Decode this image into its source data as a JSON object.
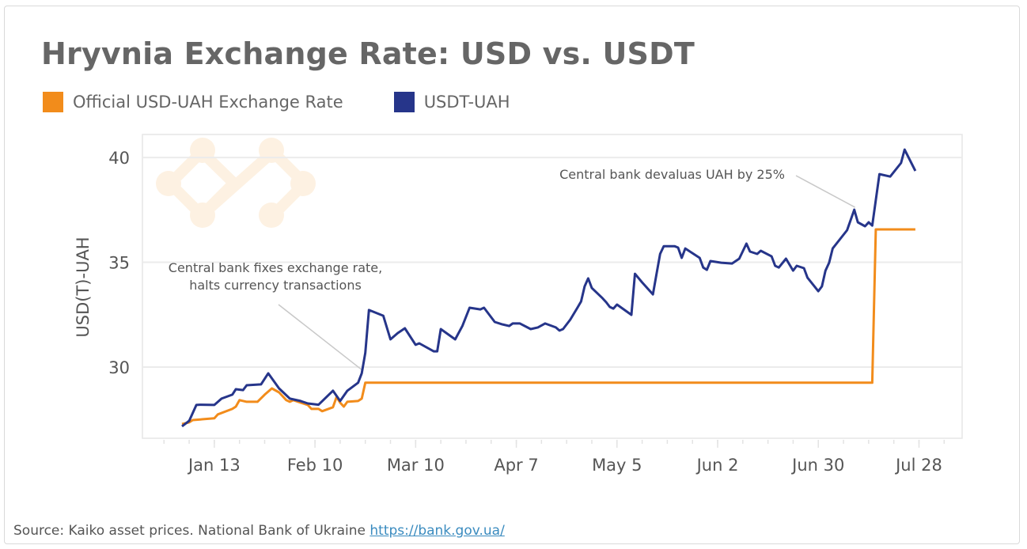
{
  "chart_data": {
    "type": "line",
    "title": "Hryvnia Exchange Rate: USD vs. USDT",
    "xlabel": "",
    "ylabel": "USD(T)-UAH",
    "xlim": [
      "2021-12-24",
      "2022-08-09"
    ],
    "ylim": [
      26.6,
      41.1
    ],
    "x_ticks": [
      {
        "date": "2022-01-13",
        "label": "Jan 13"
      },
      {
        "date": "2022-02-10",
        "label": "Feb 10"
      },
      {
        "date": "2022-03-10",
        "label": "Mar 10"
      },
      {
        "date": "2022-04-07",
        "label": "Apr 7"
      },
      {
        "date": "2022-05-05",
        "label": "May 5"
      },
      {
        "date": "2022-06-02",
        "label": "Jun 2"
      },
      {
        "date": "2022-06-30",
        "label": "Jun 30"
      },
      {
        "date": "2022-07-28",
        "label": "Jul 28"
      }
    ],
    "y_ticks": [
      {
        "value": 30,
        "label": "30"
      },
      {
        "value": 35,
        "label": "35"
      },
      {
        "value": 40,
        "label": "40"
      }
    ],
    "grid": true,
    "legend": "top-left",
    "series": [
      {
        "name": "Official USD-UAH Exchange Rate",
        "color": "#f28c1b",
        "points": [
          [
            "2022-01-04",
            27.28
          ],
          [
            "2022-01-06",
            27.36
          ],
          [
            "2022-01-07",
            27.47
          ],
          [
            "2022-01-13",
            27.55
          ],
          [
            "2022-01-14",
            27.74
          ],
          [
            "2022-01-18",
            28.0
          ],
          [
            "2022-01-19",
            28.11
          ],
          [
            "2022-01-20",
            28.42
          ],
          [
            "2022-01-22",
            28.34
          ],
          [
            "2022-01-25",
            28.34
          ],
          [
            "2022-01-27",
            28.68
          ],
          [
            "2022-01-29",
            28.98
          ],
          [
            "2022-01-31",
            28.79
          ],
          [
            "2022-02-02",
            28.42
          ],
          [
            "2022-02-03",
            28.34
          ],
          [
            "2022-02-04",
            28.42
          ],
          [
            "2022-02-06",
            28.3
          ],
          [
            "2022-02-08",
            28.19
          ],
          [
            "2022-02-09",
            28.0
          ],
          [
            "2022-02-11",
            28.0
          ],
          [
            "2022-02-12",
            27.89
          ],
          [
            "2022-02-15",
            28.08
          ],
          [
            "2022-02-16",
            28.57
          ],
          [
            "2022-02-17",
            28.3
          ],
          [
            "2022-02-18",
            28.11
          ],
          [
            "2022-02-19",
            28.34
          ],
          [
            "2022-02-22",
            28.38
          ],
          [
            "2022-02-23",
            28.49
          ],
          [
            "2022-02-24",
            29.25
          ],
          [
            "2022-07-15",
            29.25
          ],
          [
            "2022-07-16",
            36.57
          ],
          [
            "2022-07-27",
            36.57
          ]
        ]
      },
      {
        "name": "USDT-UAH",
        "color": "#26358a",
        "points": [
          [
            "2022-01-04",
            27.17
          ],
          [
            "2022-01-06",
            27.43
          ],
          [
            "2022-01-08",
            28.19
          ],
          [
            "2022-01-09",
            28.2
          ],
          [
            "2022-01-13",
            28.19
          ],
          [
            "2022-01-15",
            28.49
          ],
          [
            "2022-01-18",
            28.68
          ],
          [
            "2022-01-19",
            28.94
          ],
          [
            "2022-01-21",
            28.9
          ],
          [
            "2022-01-22",
            29.13
          ],
          [
            "2022-01-26",
            29.17
          ],
          [
            "2022-01-28",
            29.7
          ],
          [
            "2022-01-31",
            28.98
          ],
          [
            "2022-02-03",
            28.49
          ],
          [
            "2022-02-06",
            28.38
          ],
          [
            "2022-02-08",
            28.26
          ],
          [
            "2022-02-11",
            28.2
          ],
          [
            "2022-02-15",
            28.87
          ],
          [
            "2022-02-17",
            28.38
          ],
          [
            "2022-02-19",
            28.87
          ],
          [
            "2022-02-22",
            29.25
          ],
          [
            "2022-02-23",
            29.7
          ],
          [
            "2022-02-24",
            30.68
          ],
          [
            "2022-02-25",
            32.72
          ],
          [
            "2022-03-01",
            32.45
          ],
          [
            "2022-03-03",
            31.32
          ],
          [
            "2022-03-05",
            31.62
          ],
          [
            "2022-03-07",
            31.85
          ],
          [
            "2022-03-10",
            31.06
          ],
          [
            "2022-03-11",
            31.13
          ],
          [
            "2022-03-15",
            30.75
          ],
          [
            "2022-03-16",
            30.75
          ],
          [
            "2022-03-17",
            31.81
          ],
          [
            "2022-03-21",
            31.32
          ],
          [
            "2022-03-23",
            31.96
          ],
          [
            "2022-03-25",
            32.83
          ],
          [
            "2022-03-28",
            32.75
          ],
          [
            "2022-03-29",
            32.83
          ],
          [
            "2022-04-01",
            32.15
          ],
          [
            "2022-04-03",
            32.04
          ],
          [
            "2022-04-05",
            31.96
          ],
          [
            "2022-04-06",
            32.08
          ],
          [
            "2022-04-08",
            32.08
          ],
          [
            "2022-04-11",
            31.81
          ],
          [
            "2022-04-13",
            31.89
          ],
          [
            "2022-04-15",
            32.08
          ],
          [
            "2022-04-18",
            31.89
          ],
          [
            "2022-04-19",
            31.74
          ],
          [
            "2022-04-20",
            31.81
          ],
          [
            "2022-04-22",
            32.26
          ],
          [
            "2022-04-24",
            32.83
          ],
          [
            "2022-04-25",
            33.13
          ],
          [
            "2022-04-26",
            33.85
          ],
          [
            "2022-04-27",
            34.23
          ],
          [
            "2022-04-28",
            33.77
          ],
          [
            "2022-05-01",
            33.28
          ],
          [
            "2022-05-02",
            33.09
          ],
          [
            "2022-05-03",
            32.87
          ],
          [
            "2022-05-04",
            32.79
          ],
          [
            "2022-05-05",
            32.98
          ],
          [
            "2022-05-09",
            32.49
          ],
          [
            "2022-05-10",
            34.45
          ],
          [
            "2022-05-12",
            34.04
          ],
          [
            "2022-05-15",
            33.47
          ],
          [
            "2022-05-16",
            34.45
          ],
          [
            "2022-05-17",
            35.4
          ],
          [
            "2022-05-18",
            35.77
          ],
          [
            "2022-05-21",
            35.77
          ],
          [
            "2022-05-22",
            35.7
          ],
          [
            "2022-05-23",
            35.21
          ],
          [
            "2022-05-24",
            35.66
          ],
          [
            "2022-05-28",
            35.21
          ],
          [
            "2022-05-29",
            34.75
          ],
          [
            "2022-05-30",
            34.64
          ],
          [
            "2022-05-31",
            35.06
          ],
          [
            "2022-06-03",
            34.98
          ],
          [
            "2022-06-06",
            34.94
          ],
          [
            "2022-06-08",
            35.17
          ],
          [
            "2022-06-10",
            35.89
          ],
          [
            "2022-06-11",
            35.51
          ],
          [
            "2022-06-13",
            35.4
          ],
          [
            "2022-06-14",
            35.55
          ],
          [
            "2022-06-17",
            35.28
          ],
          [
            "2022-06-18",
            34.83
          ],
          [
            "2022-06-19",
            34.75
          ],
          [
            "2022-06-21",
            35.17
          ],
          [
            "2022-06-23",
            34.6
          ],
          [
            "2022-06-24",
            34.83
          ],
          [
            "2022-06-26",
            34.72
          ],
          [
            "2022-06-27",
            34.26
          ],
          [
            "2022-06-30",
            33.62
          ],
          [
            "2022-07-01",
            33.85
          ],
          [
            "2022-07-02",
            34.6
          ],
          [
            "2022-07-03",
            34.98
          ],
          [
            "2022-07-04",
            35.66
          ],
          [
            "2022-07-08",
            36.53
          ],
          [
            "2022-07-10",
            37.51
          ],
          [
            "2022-07-11",
            36.91
          ],
          [
            "2022-07-13",
            36.72
          ],
          [
            "2022-07-14",
            36.91
          ],
          [
            "2022-07-15",
            36.75
          ],
          [
            "2022-07-17",
            39.21
          ],
          [
            "2022-07-20",
            39.09
          ],
          [
            "2022-07-23",
            39.74
          ],
          [
            "2022-07-24",
            40.38
          ],
          [
            "2022-07-27",
            39.36
          ]
        ]
      }
    ],
    "annotations": [
      {
        "lines": [
          "Central bank fixes exchange rate,",
          "halts currency transactions"
        ],
        "target": [
          "2022-02-24",
          29.25
        ]
      },
      {
        "lines": [
          "Central bank devaluas UAH by 25%"
        ],
        "target": [
          "2022-07-10",
          37.51
        ]
      }
    ]
  },
  "footer": {
    "source_text": "Source: Kaiko asset prices. National Bank of Ukraine",
    "link_text": "https://bank.gov.ua/"
  },
  "watermark": {
    "color": "#fdf1e2"
  }
}
